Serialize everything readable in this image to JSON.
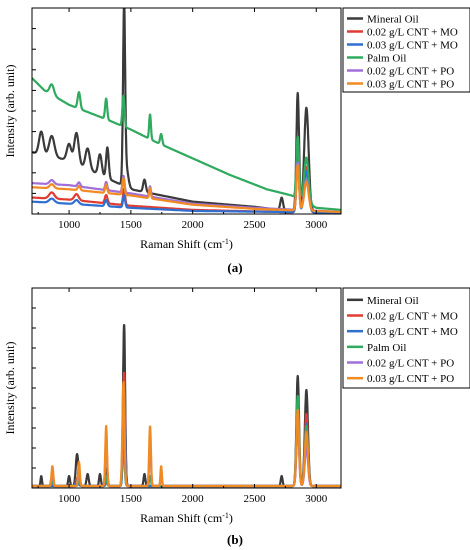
{
  "chart_data": [
    {
      "panel": "(a)",
      "type": "line",
      "xlabel": "Raman Shift (cm",
      "xlabel_sup": "-1",
      "xlabel_end": ")",
      "ylabel": "Intensity (arb. unit)",
      "xlim": [
        700,
        3200
      ],
      "ylim": [
        0,
        1
      ],
      "xticks": [
        1000,
        1500,
        2000,
        2500,
        3000
      ],
      "legend_position": "top-right",
      "series": [
        {
          "name": "Mineral Oil",
          "color": "#3a3a3a",
          "baseline": [
            [
              700,
              0.3
            ],
            [
              1000,
              0.26
            ],
            [
              1500,
              0.12
            ],
            [
              2000,
              0.06
            ],
            [
              2500,
              0.035
            ],
            [
              2700,
              0.02
            ],
            [
              3200,
              0.01
            ]
          ],
          "peaks": [
            [
              775,
              0.11,
              25
            ],
            [
              860,
              0.1,
              30
            ],
            [
              1000,
              0.08,
              25
            ],
            [
              1060,
              0.15,
              25
            ],
            [
              1150,
              0.1,
              25
            ],
            [
              1250,
              0.1,
              20
            ],
            [
              1310,
              0.15,
              15
            ],
            [
              1445,
              0.82,
              12
            ],
            [
              1460,
              0.1,
              25
            ],
            [
              1610,
              0.06,
              15
            ],
            [
              2720,
              0.06,
              15
            ],
            [
              2850,
              0.57,
              15
            ],
            [
              2920,
              0.5,
              25
            ]
          ]
        },
        {
          "name": "0.02 g/L CNT + MO",
          "color": "#e03c31",
          "baseline": [
            [
              700,
              0.08
            ],
            [
              1000,
              0.07
            ],
            [
              1500,
              0.04
            ],
            [
              2000,
              0.02
            ],
            [
              2700,
              0.01
            ],
            [
              3200,
              0.005
            ]
          ],
          "peaks": [
            [
              860,
              0.03,
              30
            ],
            [
              1060,
              0.03,
              25
            ],
            [
              1300,
              0.04,
              15
            ],
            [
              1445,
              0.08,
              12
            ],
            [
              2850,
              0.28,
              15
            ],
            [
              2920,
              0.22,
              25
            ]
          ]
        },
        {
          "name": "0.03 g/L CNT + MO",
          "color": "#2f6fd1",
          "baseline": [
            [
              700,
              0.06
            ],
            [
              1000,
              0.05
            ],
            [
              1500,
              0.03
            ],
            [
              2000,
              0.015
            ],
            [
              2700,
              0.01
            ],
            [
              3200,
              0.005
            ]
          ],
          "peaks": [
            [
              860,
              0.02,
              30
            ],
            [
              1060,
              0.02,
              25
            ],
            [
              1300,
              0.03,
              15
            ],
            [
              1445,
              0.06,
              12
            ],
            [
              2850,
              0.25,
              15
            ],
            [
              2920,
              0.2,
              25
            ]
          ]
        },
        {
          "name": "Palm Oil",
          "color": "#2faa5e",
          "baseline": [
            [
              700,
              0.66
            ],
            [
              800,
              0.6
            ],
            [
              1000,
              0.53
            ],
            [
              1300,
              0.46
            ],
            [
              1500,
              0.41
            ],
            [
              1700,
              0.35
            ],
            [
              2000,
              0.27
            ],
            [
              2300,
              0.19
            ],
            [
              2600,
              0.12
            ],
            [
              2800,
              0.09
            ],
            [
              3000,
              0.03
            ],
            [
              3200,
              0.02
            ]
          ],
          "peaks": [
            [
              860,
              0.05,
              25
            ],
            [
              1080,
              0.08,
              15
            ],
            [
              1300,
              0.1,
              12
            ],
            [
              1440,
              0.15,
              12
            ],
            [
              1655,
              0.12,
              10
            ],
            [
              1745,
              0.05,
              12
            ],
            [
              2850,
              0.3,
              15
            ],
            [
              2920,
              0.22,
              25
            ]
          ]
        },
        {
          "name": "0.02 g/L CNT + PO",
          "color": "#a070d8",
          "baseline": [
            [
              700,
              0.15
            ],
            [
              1000,
              0.14
            ],
            [
              1500,
              0.1
            ],
            [
              2000,
              0.05
            ],
            [
              2500,
              0.03
            ],
            [
              3200,
              0.01
            ]
          ],
          "peaks": [
            [
              860,
              0.02,
              25
            ],
            [
              1080,
              0.02,
              15
            ],
            [
              1300,
              0.04,
              12
            ],
            [
              1440,
              0.08,
              12
            ],
            [
              1655,
              0.05,
              10
            ],
            [
              2850,
              0.23,
              15
            ],
            [
              2920,
              0.15,
              25
            ]
          ]
        },
        {
          "name": "0.03 g/L CNT + PO",
          "color": "#f08a22",
          "baseline": [
            [
              700,
              0.13
            ],
            [
              1000,
              0.12
            ],
            [
              1500,
              0.09
            ],
            [
              2000,
              0.045
            ],
            [
              2500,
              0.025
            ],
            [
              3200,
              0.01
            ]
          ],
          "peaks": [
            [
              860,
              0.02,
              25
            ],
            [
              1080,
              0.02,
              15
            ],
            [
              1300,
              0.04,
              12
            ],
            [
              1440,
              0.08,
              12
            ],
            [
              1655,
              0.05,
              10
            ],
            [
              2850,
              0.22,
              15
            ],
            [
              2920,
              0.14,
              25
            ]
          ]
        }
      ]
    },
    {
      "panel": "(b)",
      "type": "line",
      "xlabel": "Raman Shift (cm",
      "xlabel_sup": "-1",
      "xlabel_end": ")",
      "ylabel": "Intensity (arb. unit)",
      "xlim": [
        700,
        3200
      ],
      "ylim": [
        0,
        1
      ],
      "xticks": [
        1000,
        1500,
        2000,
        2500,
        3000
      ],
      "legend_position": "top-right",
      "series": [
        {
          "name": "Mineral Oil",
          "color": "#3a3a3a",
          "baseline": [
            [
              700,
              0.01
            ],
            [
              3200,
              0.01
            ]
          ],
          "peaks": [
            [
              775,
              0.05,
              8
            ],
            [
              860,
              0.04,
              10
            ],
            [
              1000,
              0.05,
              10
            ],
            [
              1065,
              0.16,
              15
            ],
            [
              1150,
              0.06,
              12
            ],
            [
              1250,
              0.06,
              10
            ],
            [
              1305,
              0.09,
              10
            ],
            [
              1445,
              0.81,
              12
            ],
            [
              1610,
              0.06,
              10
            ],
            [
              2720,
              0.05,
              10
            ],
            [
              2850,
              0.55,
              15
            ],
            [
              2920,
              0.48,
              18
            ]
          ]
        },
        {
          "name": "0.02 g/L CNT + MO",
          "color": "#e03c31",
          "baseline": [
            [
              700,
              0.01
            ],
            [
              3200,
              0.01
            ]
          ],
          "peaks": [
            [
              1065,
              0.04,
              15
            ],
            [
              1305,
              0.03,
              10
            ],
            [
              1445,
              0.57,
              12
            ],
            [
              2850,
              0.42,
              15
            ],
            [
              2920,
              0.36,
              18
            ]
          ]
        },
        {
          "name": "0.03 g/L CNT + MO",
          "color": "#2f6fd1",
          "baseline": [
            [
              700,
              0.01
            ],
            [
              3200,
              0.01
            ]
          ],
          "peaks": [
            [
              1065,
              0.03,
              15
            ],
            [
              1305,
              0.03,
              10
            ],
            [
              1445,
              0.49,
              12
            ],
            [
              2850,
              0.37,
              15
            ],
            [
              2920,
              0.31,
              18
            ]
          ]
        },
        {
          "name": "Palm Oil",
          "color": "#2faa5e",
          "baseline": [
            [
              700,
              0.01
            ],
            [
              3200,
              0.01
            ]
          ],
          "peaks": [
            [
              865,
              0.03,
              10
            ],
            [
              1080,
              0.03,
              10
            ],
            [
              1300,
              0.05,
              10
            ],
            [
              1440,
              0.22,
              12
            ],
            [
              1655,
              0.05,
              10
            ],
            [
              2850,
              0.45,
              15
            ],
            [
              2920,
              0.3,
              18
            ]
          ]
        },
        {
          "name": "0.02 g/L CNT + PO",
          "color": "#a070d8",
          "baseline": [
            [
              700,
              0.01
            ],
            [
              3200,
              0.01
            ]
          ],
          "peaks": [
            [
              865,
              0.07,
              10
            ],
            [
              1080,
              0.08,
              10
            ],
            [
              1300,
              0.25,
              10
            ],
            [
              1440,
              0.4,
              12
            ],
            [
              1655,
              0.22,
              10
            ],
            [
              1745,
              0.06,
              8
            ],
            [
              2850,
              0.3,
              15
            ],
            [
              2920,
              0.2,
              18
            ]
          ]
        },
        {
          "name": "0.03 g/L CNT + PO",
          "color": "#f08a22",
          "baseline": [
            [
              700,
              0.01
            ],
            [
              3200,
              0.01
            ]
          ],
          "peaks": [
            [
              865,
              0.1,
              10
            ],
            [
              1080,
              0.12,
              10
            ],
            [
              1300,
              0.3,
              10
            ],
            [
              1440,
              0.52,
              12
            ],
            [
              1655,
              0.3,
              10
            ],
            [
              1745,
              0.1,
              8
            ],
            [
              2850,
              0.38,
              15
            ],
            [
              2920,
              0.27,
              18
            ]
          ]
        }
      ]
    }
  ]
}
